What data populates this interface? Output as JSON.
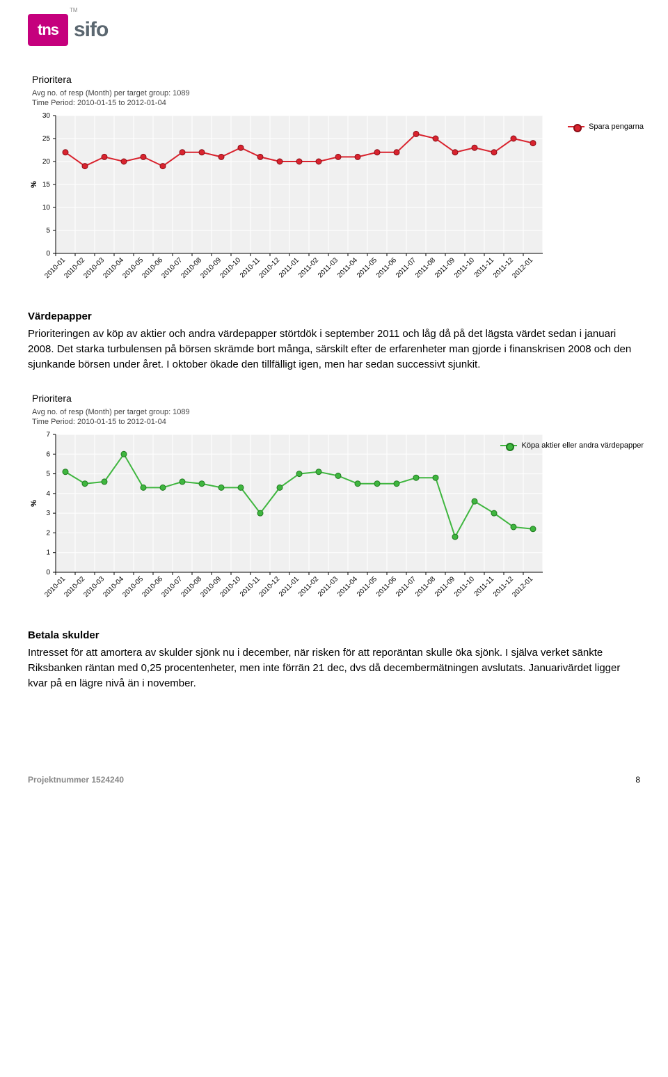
{
  "logo": {
    "box": "tns",
    "text": "sifo",
    "tm": "TM"
  },
  "chart1": {
    "type": "line",
    "title": "Prioritera",
    "subtitle1": "Avg no. of resp (Month) per target group: 1089",
    "subtitle2": "Time Period: 2010-01-15 to 2012-01-04",
    "legend_label": "Spara pengarna",
    "ylabel": "%",
    "ylim": [
      0,
      30
    ],
    "ytick_step": 5,
    "categories": [
      "2010-01",
      "2010-02",
      "2010-03",
      "2010-04",
      "2010-05",
      "2010-06",
      "2010-07",
      "2010-08",
      "2010-09",
      "2010-10",
      "2010-11",
      "2010-12",
      "2011-01",
      "2011-02",
      "2011-03",
      "2011-04",
      "2011-05",
      "2011-06",
      "2011-07",
      "2011-08",
      "2011-09",
      "2011-10",
      "2011-11",
      "2011-12",
      "2012-01"
    ],
    "values": [
      22,
      19,
      21,
      20,
      21,
      19,
      22,
      22,
      21,
      23,
      21,
      20,
      20,
      20,
      21,
      21,
      22,
      22,
      26,
      25,
      22,
      23,
      22,
      25,
      24
    ],
    "line_color": "#d9232e",
    "marker_fill": "#d9232e",
    "marker_stroke": "#8a0f18",
    "background_color": "#f0f0f0",
    "grid_color": "#ffffff",
    "tick_fontsize": 10,
    "label_fontsize": 11,
    "line_width": 2
  },
  "section1": {
    "heading": "Värdepapper",
    "body": "Prioriteringen av köp av aktier och andra värdepapper störtdök i september 2011 och låg då på det lägsta värdet sedan i januari 2008. Det starka turbulensen på börsen skrämde bort många, särskilt efter de erfarenheter man gjorde i finanskrisen 2008 och den sjunkande börsen under året. I oktober ökade den tillfälligt igen, men har sedan successivt sjunkit."
  },
  "chart2": {
    "type": "line",
    "title": "Prioritera",
    "subtitle1": "Avg no. of resp (Month) per target group: 1089",
    "subtitle2": "Time Period: 2010-01-15 to 2012-01-04",
    "legend_label": "Köpa aktier eller andra värdepapper",
    "ylabel": "%",
    "ylim": [
      0,
      7
    ],
    "ytick_step": 1,
    "categories": [
      "2010-01",
      "2010-02",
      "2010-03",
      "2010-04",
      "2010-05",
      "2010-06",
      "2010-07",
      "2010-08",
      "2010-09",
      "2010-10",
      "2010-11",
      "2010-12",
      "2011-01",
      "2011-02",
      "2011-03",
      "2011-04",
      "2011-05",
      "2011-06",
      "2011-07",
      "2011-08",
      "2011-09",
      "2011-10",
      "2011-11",
      "2011-12",
      "2012-01"
    ],
    "values": [
      5.1,
      4.5,
      4.6,
      6.0,
      4.3,
      4.3,
      4.6,
      4.5,
      4.3,
      4.3,
      3.0,
      4.3,
      5.0,
      5.1,
      4.9,
      4.5,
      4.5,
      4.5,
      4.8,
      4.8,
      1.8,
      3.6,
      3.0,
      2.3,
      2.2
    ],
    "line_color": "#3fb63f",
    "marker_fill": "#3fb63f",
    "marker_stroke": "#1e7a1e",
    "background_color": "#f0f0f0",
    "grid_color": "#ffffff",
    "tick_fontsize": 10,
    "label_fontsize": 11,
    "line_width": 2
  },
  "section2": {
    "heading": "Betala skulder",
    "body": "Intresset för att amortera av skulder sjönk nu i december, när risken för att reporäntan skulle öka sjönk. I själva verket sänkte Riksbanken räntan med 0,25 procentenheter, men inte förrän 21 dec, dvs då decembermätningen avslutats. Januarivärdet ligger kvar på en lägre nivå än i november."
  },
  "footer": {
    "project_label": "Projektnummer 1524240",
    "page": "8"
  }
}
